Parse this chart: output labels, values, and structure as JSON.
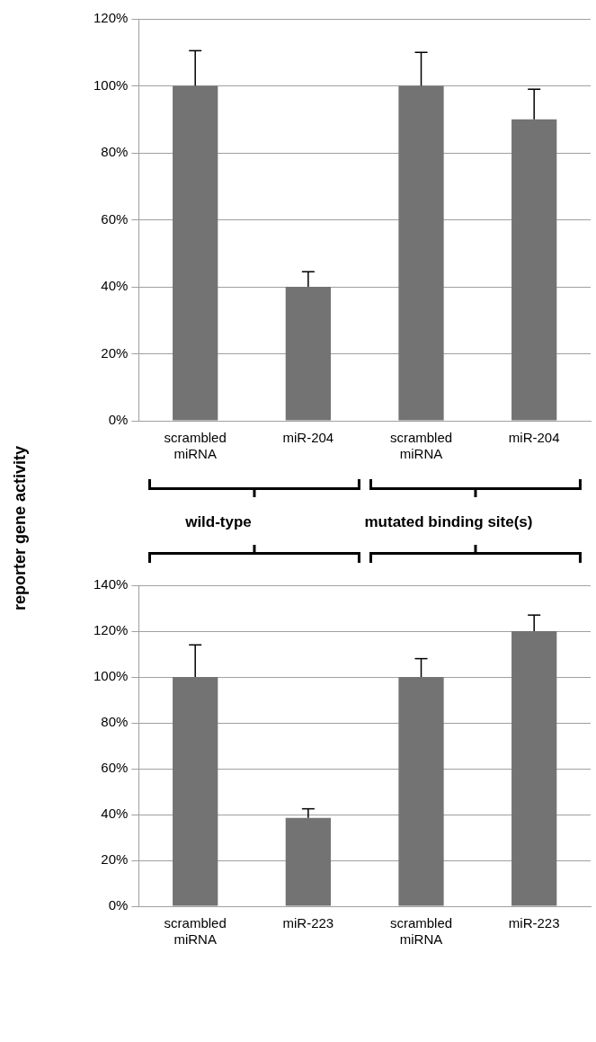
{
  "chart_data": [
    {
      "type": "bar",
      "categories": [
        "scrambled miRNA",
        "miR-204",
        "scrambled miRNA",
        "miR-204"
      ],
      "values": [
        100,
        40,
        100,
        90
      ],
      "errors": [
        [
          100,
          110.5
        ],
        [
          40,
          44.5
        ],
        [
          100,
          110
        ],
        [
          90,
          99
        ]
      ],
      "color": "#737373",
      "ylim": [
        0,
        120
      ],
      "yticks": [
        {
          "value": 0,
          "label": "0%"
        },
        {
          "value": 20,
          "label": "20%"
        },
        {
          "value": 40,
          "label": "40%"
        },
        {
          "value": 60,
          "label": "60%"
        },
        {
          "value": 80,
          "label": "80%"
        },
        {
          "value": 100,
          "label": "100%"
        },
        {
          "value": 120,
          "label": "120%"
        }
      ],
      "grid": "y",
      "annotations": [
        "wild-type",
        "mutated binding site(s)"
      ]
    },
    {
      "type": "bar",
      "categories": [
        "scrambled miRNA",
        "miR-223",
        "scrambled miRNA",
        "miR-223"
      ],
      "values": [
        100,
        38.5,
        100,
        120
      ],
      "errors": [
        [
          100,
          114
        ],
        [
          38.5,
          42.5
        ],
        [
          100,
          108
        ],
        [
          120,
          127
        ]
      ],
      "color": "#737373",
      "ylim": [
        0,
        140
      ],
      "yticks": [
        {
          "value": 0,
          "label": "0%"
        },
        {
          "value": 20,
          "label": "20%"
        },
        {
          "value": 40,
          "label": "40%"
        },
        {
          "value": 60,
          "label": "60%"
        },
        {
          "value": 80,
          "label": "80%"
        },
        {
          "value": 100,
          "label": "100%"
        },
        {
          "value": 120,
          "label": "120%"
        },
        {
          "value": 140,
          "label": "140%"
        }
      ],
      "grid": "y",
      "ylabel": "reporter gene activity"
    }
  ]
}
